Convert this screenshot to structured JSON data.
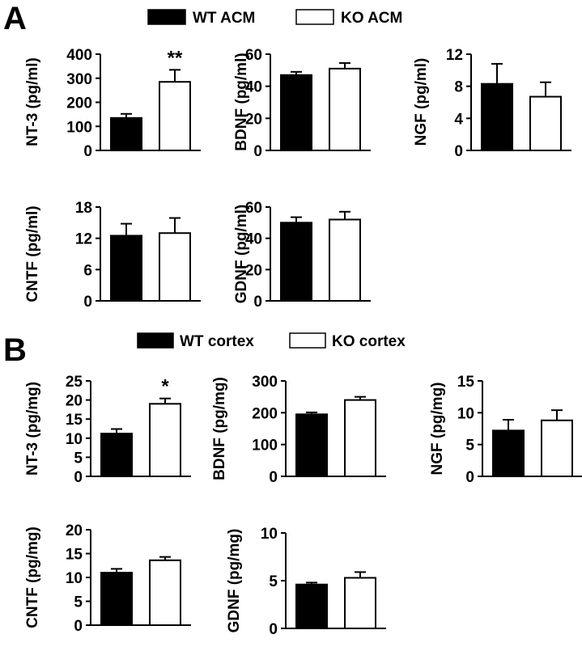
{
  "panels": [
    {
      "letter": "A",
      "legend": [
        {
          "label": "WT ACM",
          "fill": "#000000"
        },
        {
          "label": "KO ACM",
          "fill": "#ffffff"
        }
      ]
    },
    {
      "letter": "B",
      "legend": [
        {
          "label": "WT cortex",
          "fill": "#000000"
        },
        {
          "label": "KO cortex",
          "fill": "#ffffff"
        }
      ]
    }
  ],
  "chart_data": [
    {
      "type": "bar",
      "panel": "A",
      "ylabel": "NT-3 (pg/ml)",
      "categories": [
        "WT ACM",
        "KO ACM"
      ],
      "values": [
        135,
        285
      ],
      "errors": [
        17,
        50
      ],
      "ylim": [
        0,
        400
      ],
      "yticks": [
        0,
        100,
        200,
        300,
        400
      ],
      "significance": "**"
    },
    {
      "type": "bar",
      "panel": "A",
      "ylabel": "BDNF (pg/ml)",
      "categories": [
        "WT ACM",
        "KO ACM"
      ],
      "values": [
        47,
        51
      ],
      "errors": [
        2,
        3.5
      ],
      "ylim": [
        0,
        60
      ],
      "yticks": [
        0,
        20,
        40,
        60
      ],
      "significance": ""
    },
    {
      "type": "bar",
      "panel": "A",
      "ylabel": "NGF (pg/ml)",
      "categories": [
        "WT ACM",
        "KO ACM"
      ],
      "values": [
        8.3,
        6.7
      ],
      "errors": [
        2.5,
        1.8
      ],
      "ylim": [
        0,
        12
      ],
      "yticks": [
        0,
        4,
        8,
        12
      ],
      "significance": ""
    },
    {
      "type": "bar",
      "panel": "A",
      "ylabel": "CNTF (pg/ml)",
      "categories": [
        "WT ACM",
        "KO ACM"
      ],
      "values": [
        12.5,
        13
      ],
      "errors": [
        2.3,
        2.9
      ],
      "ylim": [
        0,
        18
      ],
      "yticks": [
        0,
        6,
        12,
        18
      ],
      "significance": ""
    },
    {
      "type": "bar",
      "panel": "A",
      "ylabel": "GDNF (pg/ml)",
      "categories": [
        "WT ACM",
        "KO ACM"
      ],
      "values": [
        50,
        52
      ],
      "errors": [
        3.5,
        5
      ],
      "ylim": [
        0,
        60
      ],
      "yticks": [
        0,
        20,
        40,
        60
      ],
      "significance": ""
    },
    {
      "type": "bar",
      "panel": "B",
      "ylabel": "NT-3 (pg/mg)",
      "categories": [
        "WT cortex",
        "KO cortex"
      ],
      "values": [
        11.2,
        19
      ],
      "errors": [
        1.2,
        1.4
      ],
      "ylim": [
        0,
        25
      ],
      "yticks": [
        0,
        5,
        10,
        15,
        20,
        25
      ],
      "significance": "*"
    },
    {
      "type": "bar",
      "panel": "B",
      "ylabel": "BDNF (pg/mg)",
      "categories": [
        "WT cortex",
        "KO cortex"
      ],
      "values": [
        195,
        240
      ],
      "errors": [
        6,
        10
      ],
      "ylim": [
        0,
        300
      ],
      "yticks": [
        0,
        100,
        200,
        300
      ],
      "significance": ""
    },
    {
      "type": "bar",
      "panel": "B",
      "ylabel": "NGF (pg/mg)",
      "categories": [
        "WT cortex",
        "KO cortex"
      ],
      "values": [
        7.2,
        8.8
      ],
      "errors": [
        1.7,
        1.6
      ],
      "ylim": [
        0,
        15
      ],
      "yticks": [
        0,
        5,
        10,
        15
      ],
      "significance": ""
    },
    {
      "type": "bar",
      "panel": "B",
      "ylabel": "CNTF (pg/mg)",
      "categories": [
        "WT cortex",
        "KO cortex"
      ],
      "values": [
        11,
        13.6
      ],
      "errors": [
        0.8,
        0.7
      ],
      "ylim": [
        0,
        20
      ],
      "yticks": [
        0,
        5,
        10,
        15,
        20
      ],
      "significance": ""
    },
    {
      "type": "bar",
      "panel": "B",
      "ylabel": "GDNF (pg/mg)",
      "categories": [
        "WT cortex",
        "KO cortex"
      ],
      "values": [
        4.6,
        5.3
      ],
      "errors": [
        0.2,
        0.6
      ],
      "ylim": [
        0,
        10
      ],
      "yticks": [
        0,
        5,
        10
      ],
      "significance": ""
    }
  ]
}
